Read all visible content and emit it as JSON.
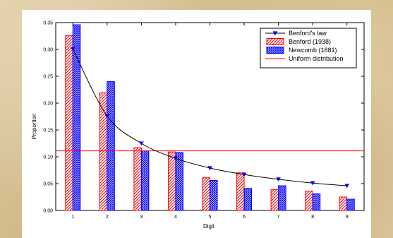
{
  "chart_data": {
    "type": "bar",
    "title": "",
    "xlabel": "Digit",
    "ylabel": "Proportion",
    "x": [
      1,
      2,
      3,
      4,
      5,
      6,
      7,
      8,
      9
    ],
    "xticks": [
      "1",
      "2",
      "3",
      "4",
      "5",
      "6",
      "7",
      "8",
      "9"
    ],
    "ylim": [
      0.0,
      0.35
    ],
    "yticks": [
      "0.00",
      "0.05",
      "0.10",
      "0.15",
      "0.20",
      "0.25",
      "0.30",
      "0.35"
    ],
    "grid": false,
    "legend_position": "top-right",
    "series": [
      {
        "name": "Benford's law",
        "type": "line",
        "marker": "triangle-down",
        "color": "#0000ff",
        "line_color": "#000000",
        "values": [
          0.301,
          0.176,
          0.125,
          0.097,
          0.079,
          0.067,
          0.058,
          0.051,
          0.046
        ]
      },
      {
        "name": "Benford (1938)",
        "type": "bar",
        "pattern": "diagonal-hatch",
        "color": "#ff0000",
        "values": [
          0.326,
          0.219,
          0.117,
          0.109,
          0.061,
          0.07,
          0.039,
          0.036,
          0.025
        ]
      },
      {
        "name": "Newcomb (1881)",
        "type": "bar",
        "pattern": "cross-hatch",
        "color": "#0000ff",
        "values": [
          0.346,
          0.24,
          0.111,
          0.108,
          0.056,
          0.041,
          0.046,
          0.031,
          0.021
        ]
      },
      {
        "name": "Uniform distribution",
        "type": "hline",
        "color": "#ff0000",
        "values": [
          0.111,
          0.111,
          0.111,
          0.111,
          0.111,
          0.111,
          0.111,
          0.111,
          0.111
        ]
      }
    ]
  }
}
